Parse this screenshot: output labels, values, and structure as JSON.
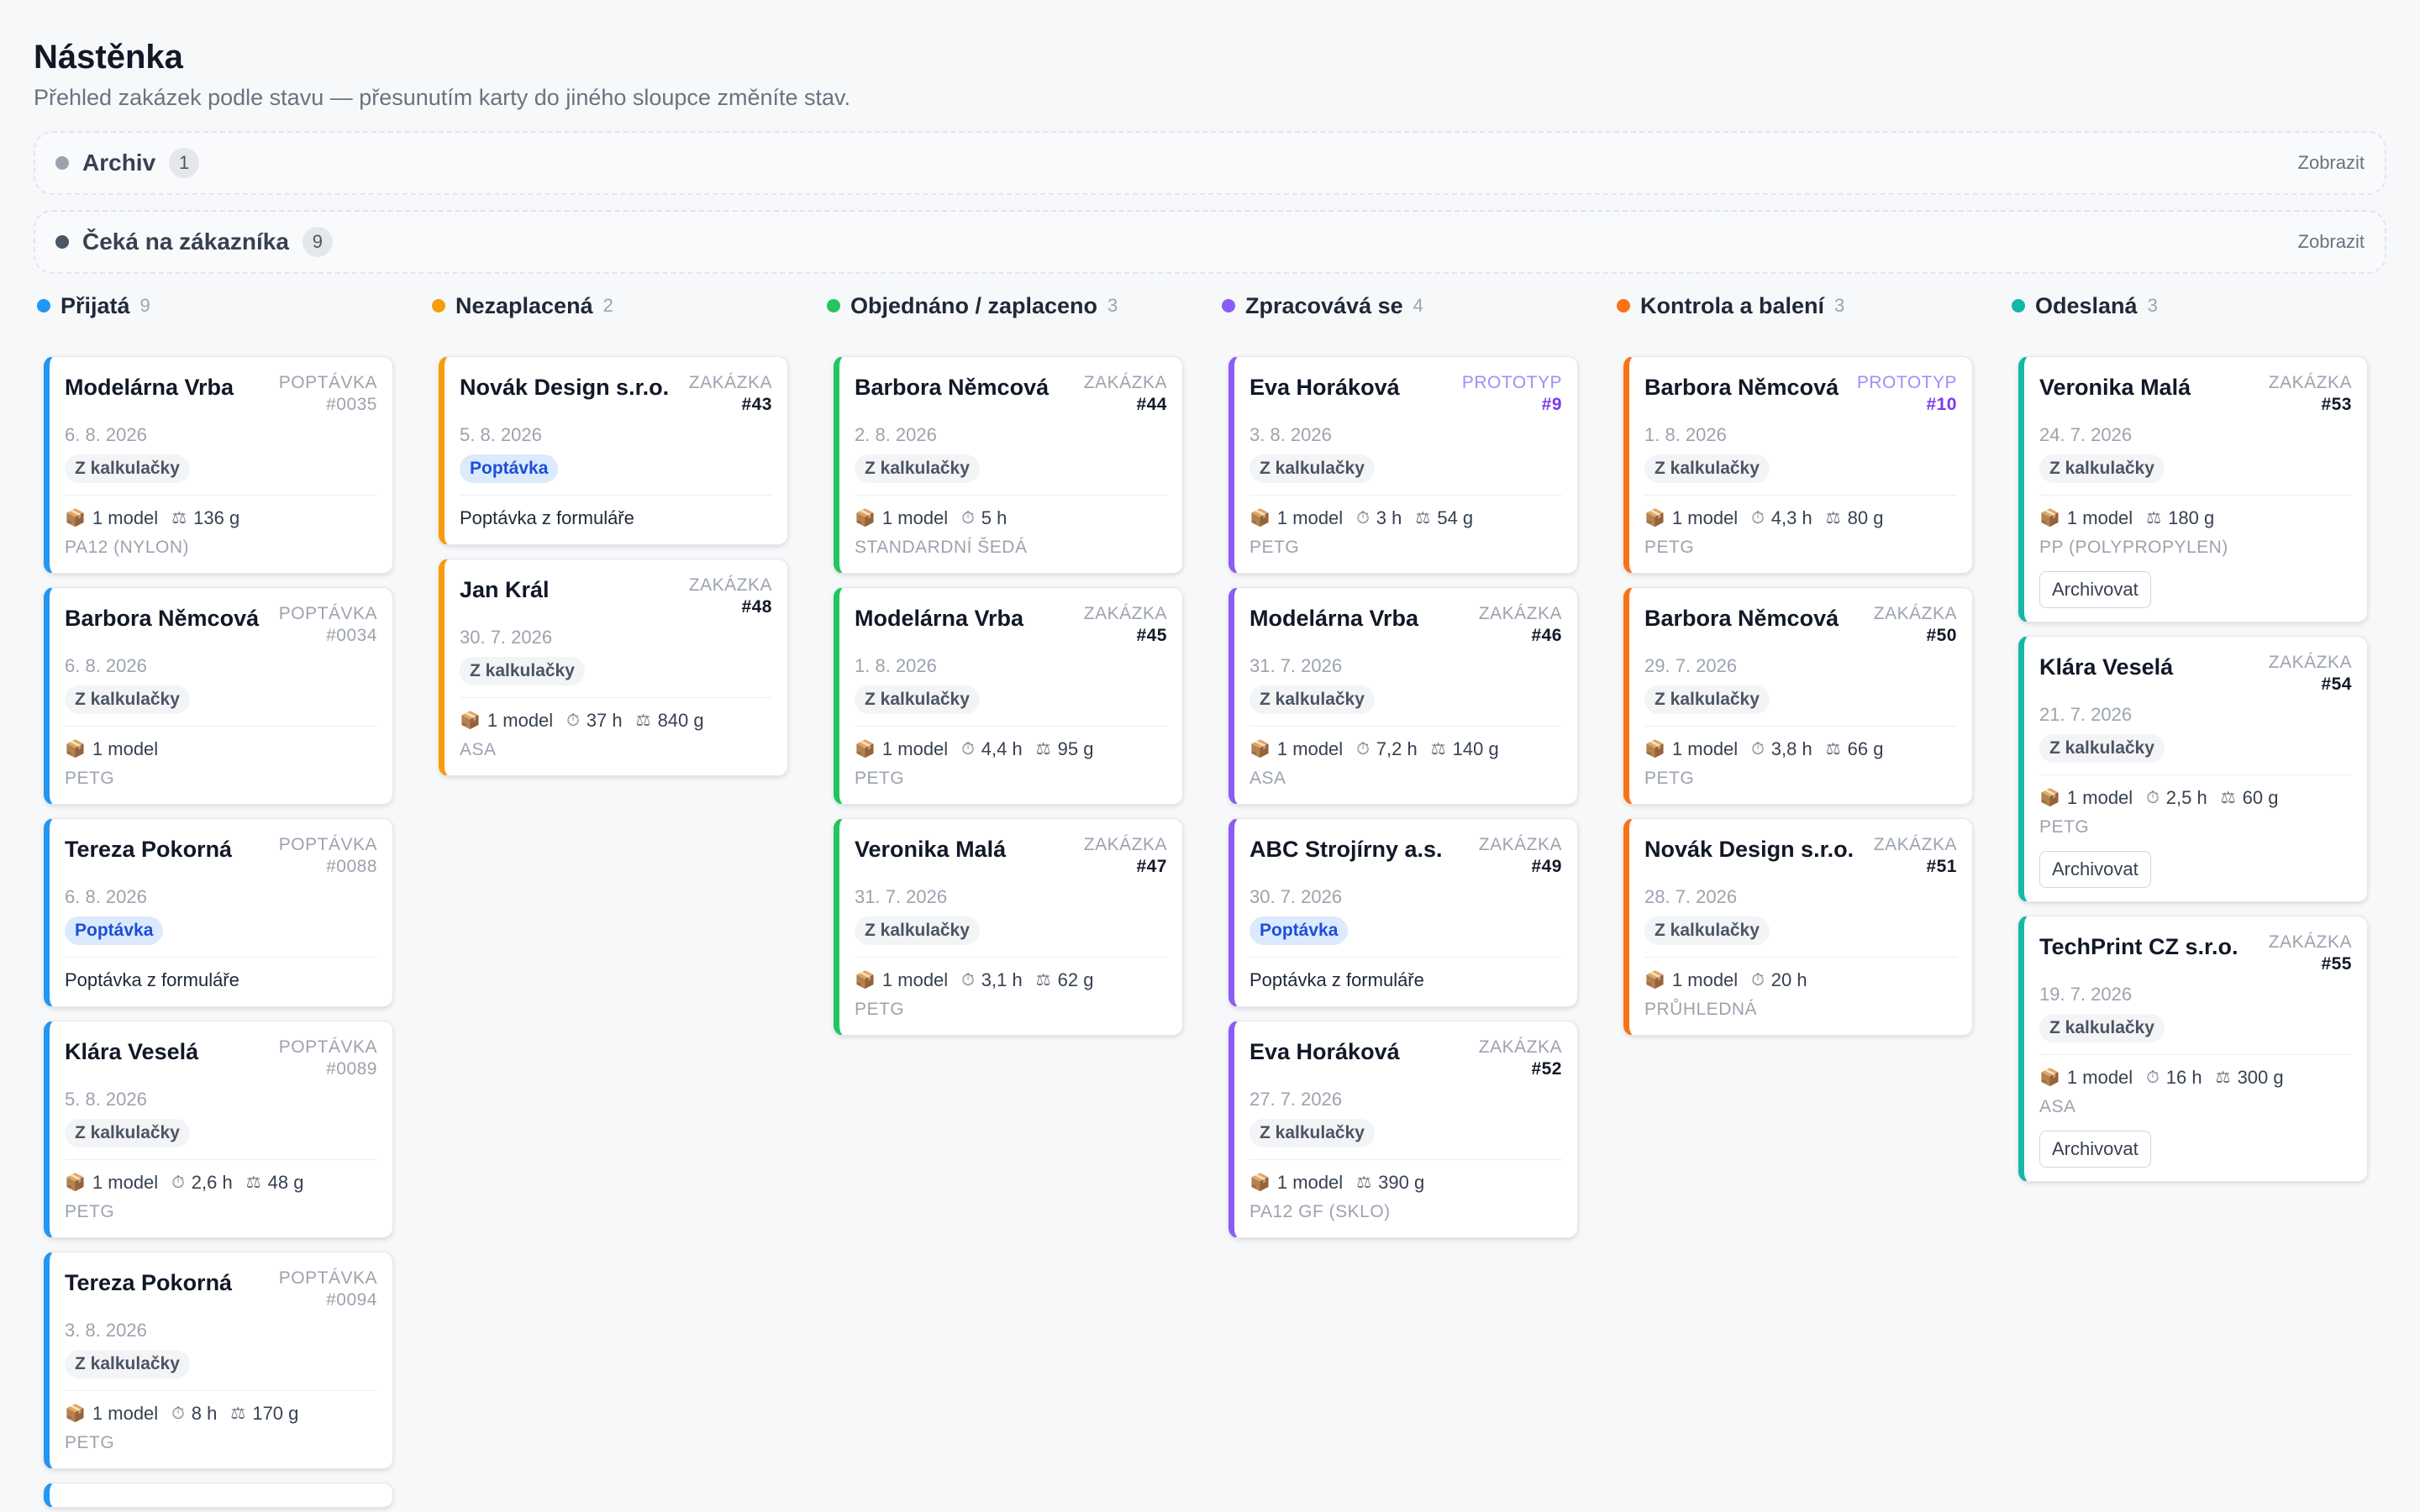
{
  "header": {
    "title": "Nástěnka",
    "subtitle": "Přehled zakázek podle stavu — přesunutím karty do jiného sloupce změníte stav."
  },
  "collapsed_groups": [
    {
      "name": "Archiv",
      "count": "1",
      "action": "Zobrazit",
      "color": "#9ca3af"
    },
    {
      "name": "Čeká na zákazníka",
      "count": "9",
      "action": "Zobrazit",
      "color": "#4b5563"
    }
  ],
  "icons": {
    "model": "package-icon",
    "time": "stopwatch-icon",
    "weight": "scale-icon"
  },
  "columns": [
    {
      "name": "Přijatá",
      "count": "9",
      "color": "#2196f3",
      "cards": [
        {
          "title": "Modelárna Vrba",
          "kind": "POPTÁVKA",
          "num": "#0035",
          "date": "6. 8. 2026",
          "tag": "Z kalkulačky",
          "tagType": "calc",
          "model": "1 model",
          "time": "",
          "weight": "136 g",
          "note": "",
          "material": "PA12 (NYLON)",
          "archive": ""
        },
        {
          "title": "Barbora Němcová",
          "kind": "POPTÁVKA",
          "num": "#0034",
          "date": "6. 8. 2026",
          "tag": "Z kalkulačky",
          "tagType": "calc",
          "model": "1 model",
          "time": "",
          "weight": "",
          "note": "",
          "material": "PETG",
          "archive": ""
        },
        {
          "title": "Tereza Pokorná",
          "kind": "POPTÁVKA",
          "num": "#0088",
          "date": "6. 8. 2026",
          "tag": "Poptávka",
          "tagType": "inq",
          "model": "",
          "time": "",
          "weight": "",
          "note": "Poptávka z formuláře",
          "material": "",
          "archive": ""
        },
        {
          "title": "Klára Veselá",
          "kind": "POPTÁVKA",
          "num": "#0089",
          "date": "5. 8. 2026",
          "tag": "Z kalkulačky",
          "tagType": "calc",
          "model": "1 model",
          "time": "2,6 h",
          "weight": "48 g",
          "note": "",
          "material": "PETG",
          "archive": ""
        },
        {
          "title": "Tereza Pokorná",
          "kind": "POPTÁVKA",
          "num": "#0094",
          "date": "3. 8. 2026",
          "tag": "Z kalkulačky",
          "tagType": "calc",
          "model": "1 model",
          "time": "8 h",
          "weight": "170 g",
          "note": "",
          "material": "PETG",
          "archive": ""
        }
      ]
    },
    {
      "name": "Nezaplacená",
      "count": "2",
      "color": "#f59e0b",
      "cards": [
        {
          "title": "Novák Design s.r.o.",
          "kind": "ZAKÁZKA",
          "num": "#43",
          "date": "5. 8. 2026",
          "tag": "Poptávka",
          "tagType": "inq",
          "model": "",
          "time": "",
          "weight": "",
          "note": "Poptávka z formuláře",
          "material": "",
          "archive": ""
        },
        {
          "title": "Jan Král",
          "kind": "ZAKÁZKA",
          "num": "#48",
          "date": "30. 7. 2026",
          "tag": "Z kalkulačky",
          "tagType": "calc",
          "model": "1 model",
          "time": "37 h",
          "weight": "840 g",
          "note": "",
          "material": "ASA",
          "archive": ""
        }
      ]
    },
    {
      "name": "Objednáno / zaplaceno",
      "count": "3",
      "color": "#22c55e",
      "cards": [
        {
          "title": "Barbora Němcová",
          "kind": "ZAKÁZKA",
          "num": "#44",
          "date": "2. 8. 2026",
          "tag": "Z kalkulačky",
          "tagType": "calc",
          "model": "1 model",
          "time": "5 h",
          "weight": "",
          "note": "",
          "material": "STANDARDNÍ ŠEDÁ",
          "archive": ""
        },
        {
          "title": "Modelárna Vrba",
          "kind": "ZAKÁZKA",
          "num": "#45",
          "date": "1. 8. 2026",
          "tag": "Z kalkulačky",
          "tagType": "calc",
          "model": "1 model",
          "time": "4,4 h",
          "weight": "95 g",
          "note": "",
          "material": "PETG",
          "archive": ""
        },
        {
          "title": "Veronika Malá",
          "kind": "ZAKÁZKA",
          "num": "#47",
          "date": "31. 7. 2026",
          "tag": "Z kalkulačky",
          "tagType": "calc",
          "model": "1 model",
          "time": "3,1 h",
          "weight": "62 g",
          "note": "",
          "material": "PETG",
          "archive": ""
        }
      ]
    },
    {
      "name": "Zpracovává se",
      "count": "4",
      "color": "#8b5cf6",
      "cards": [
        {
          "title": "Eva Horáková",
          "kind": "PROTOTYP",
          "num": "#9",
          "date": "3. 8. 2026",
          "tag": "Z kalkulačky",
          "tagType": "calc",
          "model": "1 model",
          "time": "3 h",
          "weight": "54 g",
          "note": "",
          "material": "PETG",
          "archive": "",
          "proto": true
        },
        {
          "title": "Modelárna Vrba",
          "kind": "ZAKÁZKA",
          "num": "#46",
          "date": "31. 7. 2026",
          "tag": "Z kalkulačky",
          "tagType": "calc",
          "model": "1 model",
          "time": "7,2 h",
          "weight": "140 g",
          "note": "",
          "material": "ASA",
          "archive": ""
        },
        {
          "title": "ABC Strojírny a.s.",
          "kind": "ZAKÁZKA",
          "num": "#49",
          "date": "30. 7. 2026",
          "tag": "Poptávka",
          "tagType": "inq",
          "model": "",
          "time": "",
          "weight": "",
          "note": "Poptávka z formuláře",
          "material": "",
          "archive": ""
        },
        {
          "title": "Eva Horáková",
          "kind": "ZAKÁZKA",
          "num": "#52",
          "date": "27. 7. 2026",
          "tag": "Z kalkulačky",
          "tagType": "calc",
          "model": "1 model",
          "time": "",
          "weight": "390 g",
          "note": "",
          "material": "PA12 GF (SKLO)",
          "archive": ""
        }
      ]
    },
    {
      "name": "Kontrola a balení",
      "count": "3",
      "color": "#f97316",
      "cards": [
        {
          "title": "Barbora Němcová",
          "kind": "PROTOTYP",
          "num": "#10",
          "date": "1. 8. 2026",
          "tag": "Z kalkulačky",
          "tagType": "calc",
          "model": "1 model",
          "time": "4,3 h",
          "weight": "80 g",
          "note": "",
          "material": "PETG",
          "archive": "",
          "proto": true
        },
        {
          "title": "Barbora Němcová",
          "kind": "ZAKÁZKA",
          "num": "#50",
          "date": "29. 7. 2026",
          "tag": "Z kalkulačky",
          "tagType": "calc",
          "model": "1 model",
          "time": "3,8 h",
          "weight": "66 g",
          "note": "",
          "material": "PETG",
          "archive": ""
        },
        {
          "title": "Novák Design s.r.o.",
          "kind": "ZAKÁZKA",
          "num": "#51",
          "date": "28. 7. 2026",
          "tag": "Z kalkulačky",
          "tagType": "calc",
          "model": "1 model",
          "time": "20 h",
          "weight": "",
          "note": "",
          "material": "PRŮHLEDNÁ",
          "archive": ""
        }
      ]
    },
    {
      "name": "Odeslaná",
      "count": "3",
      "color": "#14b8a6",
      "cards": [
        {
          "title": "Veronika Malá",
          "kind": "ZAKÁZKA",
          "num": "#53",
          "date": "24. 7. 2026",
          "tag": "Z kalkulačky",
          "tagType": "calc",
          "model": "1 model",
          "time": "",
          "weight": "180 g",
          "note": "",
          "material": "PP (POLYPROPYLEN)",
          "archive": "Archivovat"
        },
        {
          "title": "Klára Veselá",
          "kind": "ZAKÁZKA",
          "num": "#54",
          "date": "21. 7. 2026",
          "tag": "Z kalkulačky",
          "tagType": "calc",
          "model": "1 model",
          "time": "2,5 h",
          "weight": "60 g",
          "note": "",
          "material": "PETG",
          "archive": "Archivovat"
        },
        {
          "title": "TechPrint CZ s.r.o.",
          "kind": "ZAKÁZKA",
          "num": "#55",
          "date": "19. 7. 2026",
          "tag": "Z kalkulačky",
          "tagType": "calc",
          "model": "1 model",
          "time": "16 h",
          "weight": "300 g",
          "note": "",
          "material": "ASA",
          "archive": "Archivovat"
        }
      ]
    }
  ]
}
